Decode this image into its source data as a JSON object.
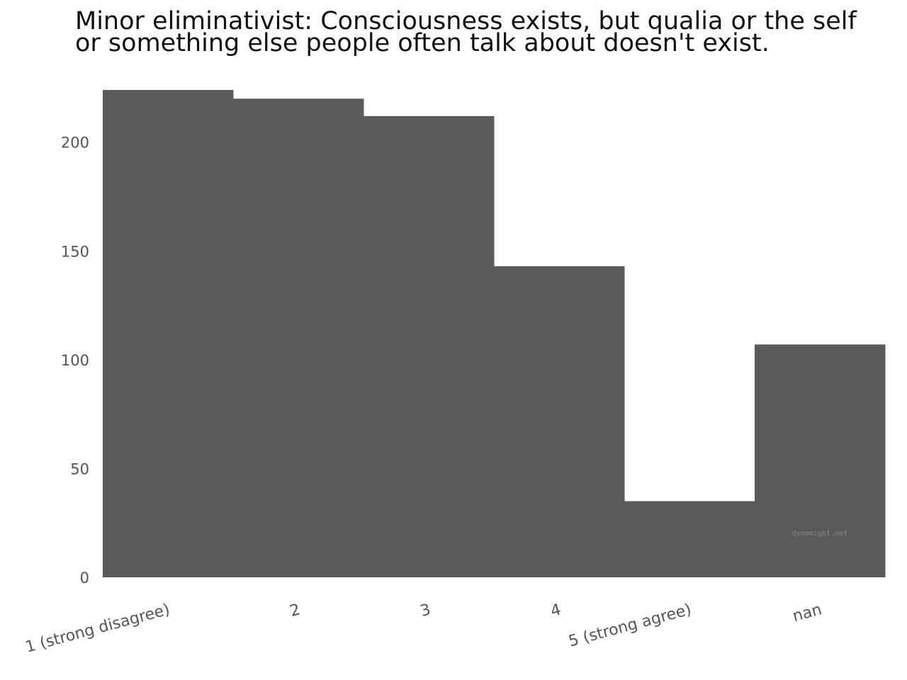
{
  "chart_data": {
    "type": "bar",
    "title_lines": [
      "Minor eliminativist: Consciousness exists, but qualia or the self",
      "or something else people often talk about doesn't exist."
    ],
    "categories": [
      "1 (strong disagree)",
      "2",
      "3",
      "4",
      "5 (strong agree)",
      "nan"
    ],
    "values": [
      224,
      220,
      212,
      143,
      35,
      107
    ],
    "ylim": [
      0,
      224
    ],
    "yticks": [
      0,
      50,
      100,
      150,
      200
    ],
    "bar_color": "#5a5a5a",
    "grid": false,
    "watermark": "dynomight.net"
  }
}
